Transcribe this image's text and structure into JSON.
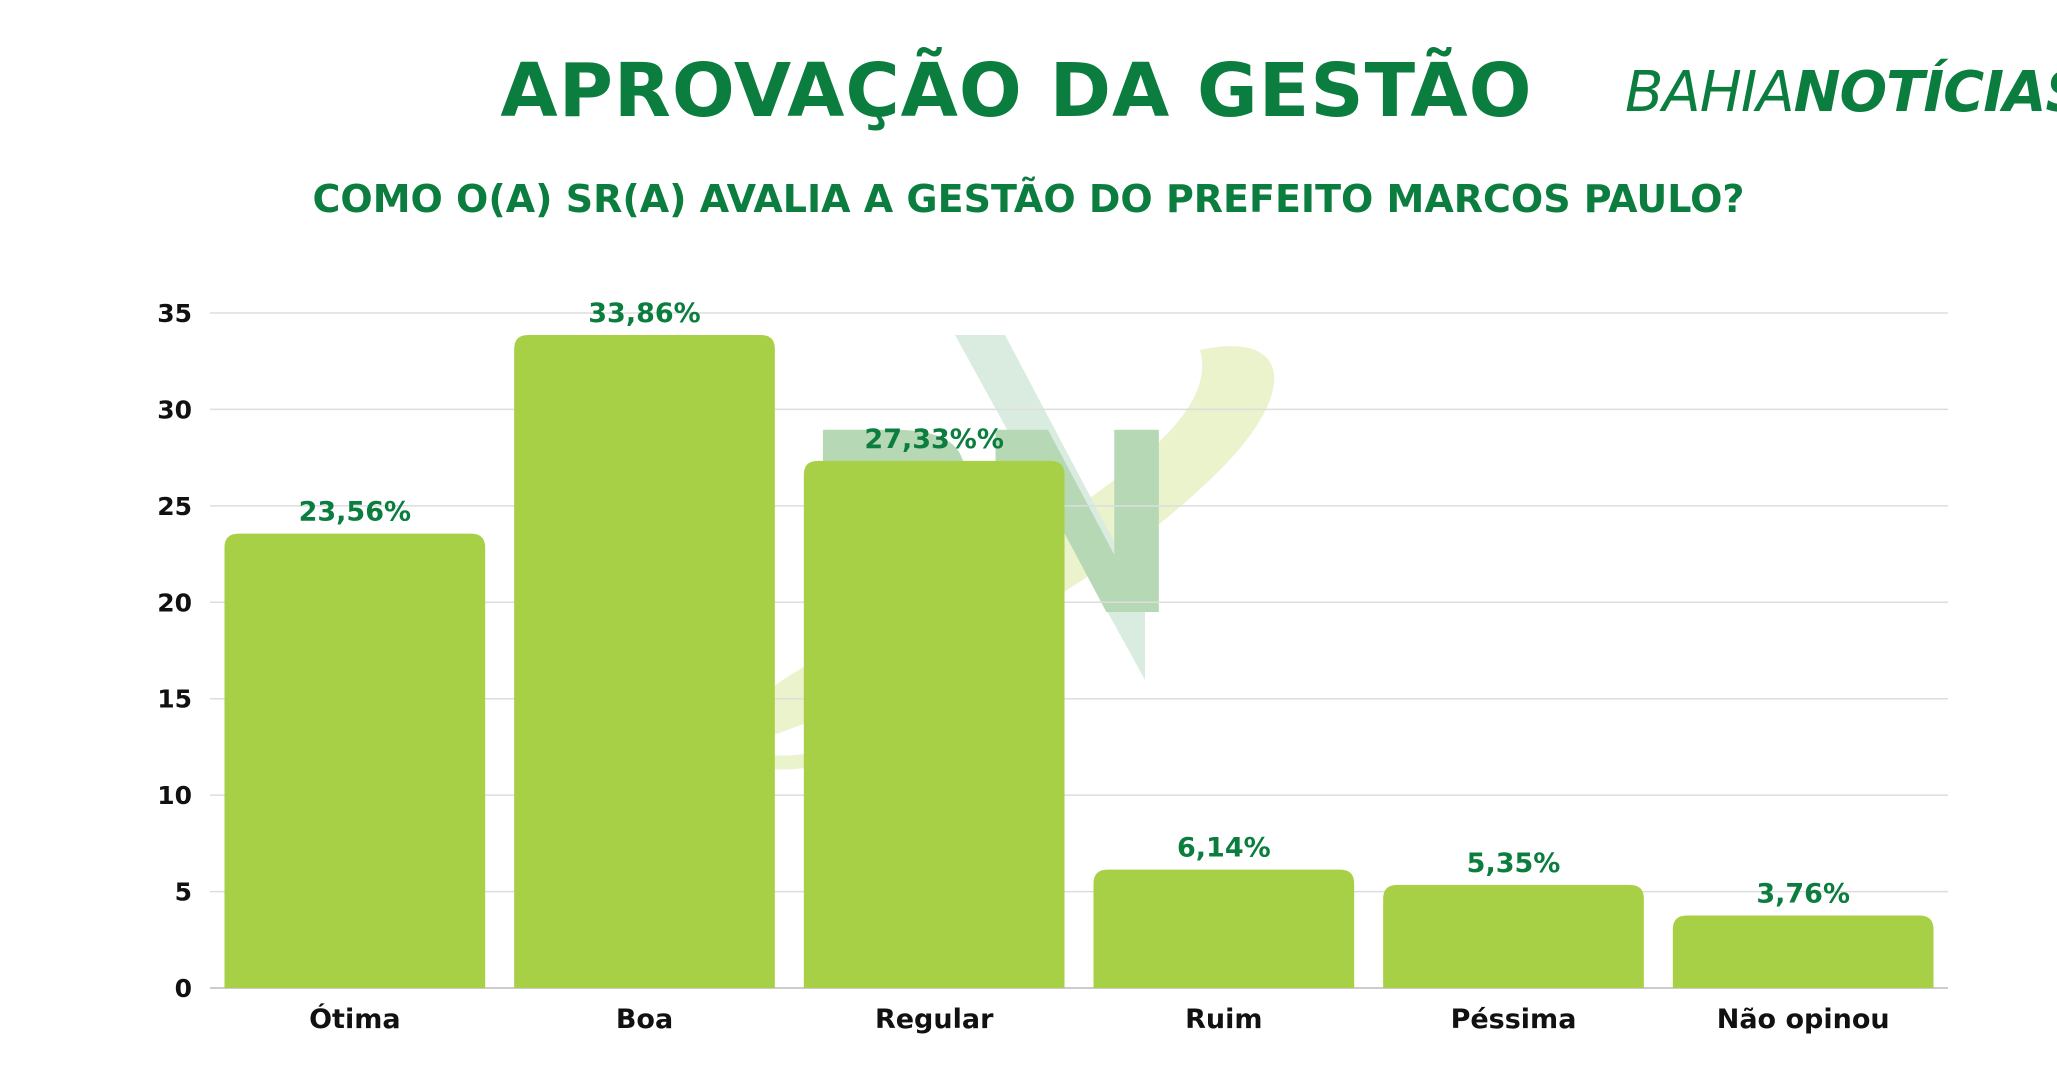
{
  "header": {
    "title": "APROVAÇÃO DA GESTÃO",
    "subtitle": "COMO O(A) SR(A) AVALIA A GESTÃO DO PREFEITO MARCOS PAULO?",
    "brand_light": "BAHIA",
    "brand_bold": "NOTÍCIAS",
    "watermark": "BN"
  },
  "colors": {
    "accent": "#0b7d3e",
    "bar": "#a8d046",
    "grid": "#dddddd",
    "axis_text": "#111111"
  },
  "chart_data": {
    "type": "bar",
    "title": "APROVAÇÃO DA GESTÃO",
    "subtitle": "COMO O(A) SR(A) AVALIA A GESTÃO DO PREFEITO MARCOS PAULO?",
    "xlabel": "",
    "ylabel": "",
    "ylim": [
      0,
      35
    ],
    "yticks": [
      0,
      5,
      10,
      15,
      20,
      25,
      30,
      35
    ],
    "grid": true,
    "legend": "none",
    "categories": [
      "Ótima",
      "Boa",
      "Regular",
      "Ruim",
      "Péssima",
      "Não opinou"
    ],
    "values": [
      23.56,
      33.86,
      27.33,
      6.14,
      5.35,
      3.76
    ],
    "data_labels": [
      "23,56%",
      "33,86%",
      "27,33%%",
      "6,14%",
      "5,35%",
      "3,76%"
    ]
  }
}
